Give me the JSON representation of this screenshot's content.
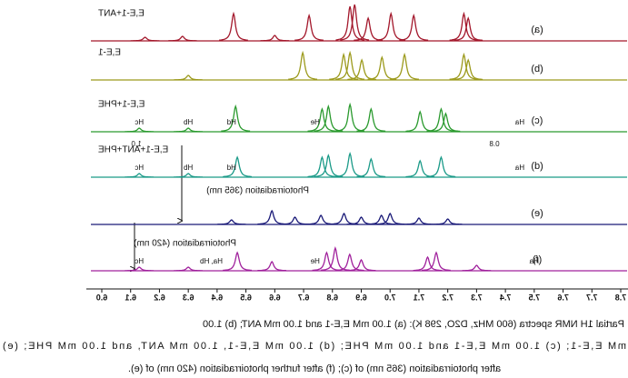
{
  "chart_data": {
    "type": "nmr-stack",
    "xlim": [
      7.8,
      6.0
    ],
    "xticks": [
      7.8,
      7.7,
      7.6,
      7.5,
      7.4,
      7.3,
      7.2,
      7.1,
      {
        "value": 7.0,
        "label": "7.0"
      },
      6.9,
      6.8,
      6.7,
      6.6,
      6.5,
      6.4,
      6.3,
      6.2,
      6.1,
      {
        "value": 6.0,
        "label": "6.0"
      }
    ],
    "spectra": [
      {
        "tag": "(a)",
        "name": "E,E-1+ANT",
        "color": "#a3172b",
        "peaks": [
          [
            6.15,
            4
          ],
          [
            6.28,
            5
          ],
          [
            6.457,
            30
          ],
          [
            6.6,
            6
          ],
          [
            6.719,
            28
          ],
          [
            6.861,
            38
          ],
          [
            6.877,
            40
          ],
          [
            6.924,
            25
          ],
          [
            7.003,
            30
          ],
          [
            7.082,
            28
          ],
          [
            7.256,
            30
          ],
          [
            7.271,
            25
          ]
        ],
        "labels": []
      },
      {
        "tag": "(b)",
        "name": "E,E-1",
        "color": "#9c9a1c",
        "peaks": [
          [
            6.3,
            5
          ],
          [
            6.697,
            30
          ],
          [
            6.839,
            28
          ],
          [
            6.861,
            30
          ],
          [
            6.902,
            22
          ],
          [
            6.972,
            25
          ],
          [
            7.05,
            28
          ],
          [
            7.256,
            28
          ],
          [
            7.271,
            22
          ]
        ],
        "labels": []
      },
      {
        "tag": "(c)",
        "name": "E,E-1+PHE",
        "color": "#2a9a2e",
        "peaks": [
          [
            6.13,
            4
          ],
          [
            6.3,
            4
          ],
          [
            6.464,
            28
          ],
          [
            6.764,
            25
          ],
          [
            6.786,
            28
          ],
          [
            6.861,
            30
          ],
          [
            6.934,
            25
          ],
          [
            7.104,
            22
          ],
          [
            7.177,
            25
          ],
          [
            7.193,
            20
          ]
        ],
        "labels": [
          {
            "ppm": 7.45,
            "text": "Ha"
          },
          {
            "ppm": 6.3,
            "text": "Hb"
          },
          {
            "ppm": 6.13,
            "text": "Hc"
          },
          {
            "ppm": 6.45,
            "text": "Hd"
          },
          {
            "ppm": 6.74,
            "text": "He"
          }
        ]
      },
      {
        "tag": "(d)",
        "name": "E,E-1+ANT+PHE",
        "color": "#1a9a88",
        "peaks": [
          [
            6.13,
            4
          ],
          [
            6.3,
            4
          ],
          [
            6.47,
            22
          ],
          [
            6.764,
            22
          ],
          [
            6.786,
            24
          ],
          [
            6.861,
            26
          ],
          [
            6.934,
            20
          ],
          [
            7.104,
            18
          ],
          [
            7.177,
            22
          ]
        ],
        "labels": [
          {
            "ppm": 7.45,
            "text": "Ha"
          },
          {
            "ppm": 6.3,
            "text": "Hb"
          },
          {
            "ppm": 6.13,
            "text": "Hc"
          },
          {
            "ppm": 6.45,
            "text": "Hd"
          }
        ]
      },
      {
        "tag": "(e)",
        "name": null,
        "color": "#1a1a78",
        "peaks": [
          [
            6.45,
            5
          ],
          [
            6.59,
            15
          ],
          [
            6.67,
            8
          ],
          [
            6.76,
            10
          ],
          [
            6.84,
            12
          ],
          [
            6.9,
            8
          ],
          [
            6.97,
            10
          ],
          [
            7.0,
            12
          ],
          [
            7.1,
            7
          ],
          [
            7.2,
            6
          ]
        ],
        "labels": []
      },
      {
        "tag": "(f)",
        "name": null,
        "color": "#a0209c",
        "peaks": [
          [
            6.13,
            4
          ],
          [
            6.3,
            4
          ],
          [
            6.47,
            20
          ],
          [
            6.59,
            10
          ],
          [
            6.78,
            20
          ],
          [
            6.81,
            25
          ],
          [
            6.86,
            18
          ],
          [
            6.9,
            12
          ],
          [
            7.13,
            15
          ],
          [
            7.16,
            20
          ],
          [
            7.3,
            6
          ]
        ],
        "labels": [
          {
            "ppm": 7.5,
            "text": "Ha"
          },
          {
            "ppm": 6.38,
            "text": "Ha, Hb"
          },
          {
            "ppm": 6.13,
            "text": "Hc"
          },
          {
            "ppm": 6.74,
            "text": "He"
          }
        ]
      }
    ],
    "annotations": [
      "Photoirradiation (365 nm)",
      "Photoirradiation (420 nm)",
      "1.0",
      "0.8"
    ],
    "caption": [
      "Partial 1H NMR spectra (600 MHz, D2O, 298 K): (a) 1.00 mM E,E-1 and 1.00 mM ANT; (b) 1.00",
      "mM E,E-1; (c) 1.00 mM E,E-1 and 1.00 mM PHE; (d) 1.00 mM E,E-1, 1.00 mM ANT, and 1.00 mM PHE; (e)",
      "after photoirradiation (365 nm) of (c); (f) after further photoirradiation (420 nm) of (e)."
    ]
  }
}
